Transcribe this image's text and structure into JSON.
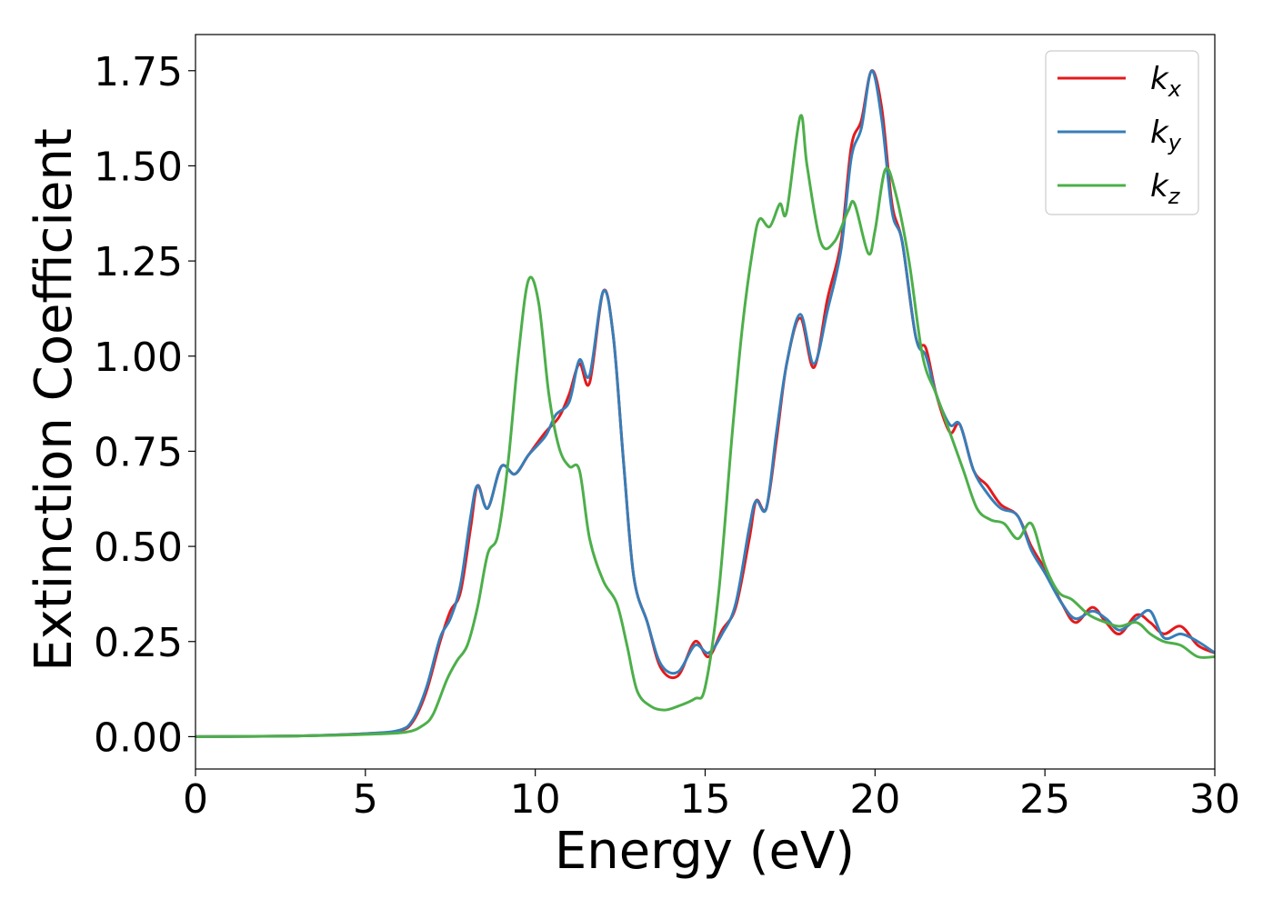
{
  "chart_data": {
    "type": "line",
    "xlabel": "Energy (eV)",
    "ylabel": "Extinction Coefficient",
    "xlim": [
      0,
      30
    ],
    "ylim": [
      -0.085,
      1.845
    ],
    "xticks": [
      0,
      5,
      10,
      15,
      20,
      25,
      30
    ],
    "xtick_labels": [
      "0",
      "5",
      "10",
      "15",
      "20",
      "25",
      "30"
    ],
    "yticks": [
      0.0,
      0.25,
      0.5,
      0.75,
      1.0,
      1.25,
      1.5,
      1.75
    ],
    "ytick_labels": [
      "0.00",
      "0.25",
      "0.50",
      "0.75",
      "1.00",
      "1.25",
      "1.50",
      "1.75"
    ],
    "grid": false,
    "legend_position": "top-right",
    "series": [
      {
        "name": "k_x",
        "label_base": "k",
        "label_sub": "x",
        "color": "#e41a1c",
        "points": [
          [
            0,
            0
          ],
          [
            3,
            0.002
          ],
          [
            5,
            0.008
          ],
          [
            6,
            0.015
          ],
          [
            6.4,
            0.04
          ],
          [
            6.8,
            0.12
          ],
          [
            7.2,
            0.25
          ],
          [
            7.5,
            0.33
          ],
          [
            7.8,
            0.38
          ],
          [
            8.1,
            0.55
          ],
          [
            8.3,
            0.66
          ],
          [
            8.6,
            0.6
          ],
          [
            9.0,
            0.71
          ],
          [
            9.4,
            0.69
          ],
          [
            9.8,
            0.74
          ],
          [
            10.3,
            0.8
          ],
          [
            10.7,
            0.84
          ],
          [
            11.0,
            0.9
          ],
          [
            11.3,
            0.98
          ],
          [
            11.6,
            0.93
          ],
          [
            12.0,
            1.17
          ],
          [
            12.3,
            1.05
          ],
          [
            12.6,
            0.72
          ],
          [
            12.9,
            0.42
          ],
          [
            13.3,
            0.3
          ],
          [
            13.7,
            0.18
          ],
          [
            14.2,
            0.16
          ],
          [
            14.7,
            0.25
          ],
          [
            15.1,
            0.21
          ],
          [
            15.5,
            0.28
          ],
          [
            15.9,
            0.34
          ],
          [
            16.3,
            0.52
          ],
          [
            16.5,
            0.62
          ],
          [
            16.8,
            0.6
          ],
          [
            17.1,
            0.78
          ],
          [
            17.4,
            0.98
          ],
          [
            17.8,
            1.1
          ],
          [
            18.2,
            0.97
          ],
          [
            18.6,
            1.15
          ],
          [
            19.0,
            1.3
          ],
          [
            19.3,
            1.55
          ],
          [
            19.6,
            1.62
          ],
          [
            19.9,
            1.75
          ],
          [
            20.2,
            1.65
          ],
          [
            20.5,
            1.4
          ],
          [
            20.8,
            1.3
          ],
          [
            21.2,
            1.05
          ],
          [
            21.5,
            1.02
          ],
          [
            21.8,
            0.9
          ],
          [
            22.2,
            0.8
          ],
          [
            22.5,
            0.82
          ],
          [
            22.9,
            0.7
          ],
          [
            23.3,
            0.66
          ],
          [
            23.7,
            0.61
          ],
          [
            24.2,
            0.58
          ],
          [
            24.6,
            0.5
          ],
          [
            25.0,
            0.44
          ],
          [
            25.5,
            0.35
          ],
          [
            25.9,
            0.3
          ],
          [
            26.4,
            0.34
          ],
          [
            26.8,
            0.3
          ],
          [
            27.2,
            0.27
          ],
          [
            27.7,
            0.32
          ],
          [
            28.1,
            0.3
          ],
          [
            28.5,
            0.27
          ],
          [
            29.0,
            0.29
          ],
          [
            29.5,
            0.24
          ],
          [
            30,
            0.22
          ]
        ]
      },
      {
        "name": "k_y",
        "label_base": "k",
        "label_sub": "y",
        "color": "#377eb8",
        "points": [
          [
            0,
            0
          ],
          [
            3,
            0.002
          ],
          [
            5,
            0.008
          ],
          [
            6,
            0.017
          ],
          [
            6.4,
            0.045
          ],
          [
            6.8,
            0.13
          ],
          [
            7.2,
            0.26
          ],
          [
            7.5,
            0.31
          ],
          [
            7.8,
            0.4
          ],
          [
            8.1,
            0.58
          ],
          [
            8.3,
            0.66
          ],
          [
            8.6,
            0.6
          ],
          [
            9.0,
            0.71
          ],
          [
            9.4,
            0.69
          ],
          [
            9.8,
            0.74
          ],
          [
            10.3,
            0.79
          ],
          [
            10.6,
            0.845
          ],
          [
            11.0,
            0.88
          ],
          [
            11.3,
            0.99
          ],
          [
            11.6,
            0.95
          ],
          [
            12.0,
            1.17
          ],
          [
            12.3,
            1.05
          ],
          [
            12.6,
            0.72
          ],
          [
            12.9,
            0.42
          ],
          [
            13.3,
            0.3
          ],
          [
            13.7,
            0.19
          ],
          [
            14.2,
            0.17
          ],
          [
            14.7,
            0.24
          ],
          [
            15.1,
            0.22
          ],
          [
            15.5,
            0.27
          ],
          [
            15.9,
            0.35
          ],
          [
            16.3,
            0.55
          ],
          [
            16.5,
            0.62
          ],
          [
            16.8,
            0.6
          ],
          [
            17.1,
            0.8
          ],
          [
            17.4,
            0.98
          ],
          [
            17.8,
            1.11
          ],
          [
            18.2,
            0.98
          ],
          [
            18.6,
            1.12
          ],
          [
            19.0,
            1.28
          ],
          [
            19.3,
            1.52
          ],
          [
            19.6,
            1.6
          ],
          [
            19.9,
            1.75
          ],
          [
            20.2,
            1.62
          ],
          [
            20.5,
            1.38
          ],
          [
            20.8,
            1.3
          ],
          [
            21.2,
            1.05
          ],
          [
            21.5,
            1.0
          ],
          [
            21.8,
            0.9
          ],
          [
            22.2,
            0.82
          ],
          [
            22.5,
            0.82
          ],
          [
            22.9,
            0.7
          ],
          [
            23.3,
            0.64
          ],
          [
            23.7,
            0.6
          ],
          [
            24.2,
            0.58
          ],
          [
            24.6,
            0.49
          ],
          [
            25.0,
            0.43
          ],
          [
            25.5,
            0.35
          ],
          [
            25.9,
            0.31
          ],
          [
            26.4,
            0.33
          ],
          [
            26.8,
            0.31
          ],
          [
            27.2,
            0.28
          ],
          [
            27.7,
            0.31
          ],
          [
            28.1,
            0.33
          ],
          [
            28.5,
            0.26
          ],
          [
            29.0,
            0.27
          ],
          [
            29.5,
            0.25
          ],
          [
            30,
            0.22
          ]
        ]
      },
      {
        "name": "k_z",
        "label_base": "k",
        "label_sub": "z",
        "color": "#4daf4a",
        "points": [
          [
            0,
            0
          ],
          [
            3,
            0.002
          ],
          [
            5,
            0.006
          ],
          [
            6.2,
            0.012
          ],
          [
            6.7,
            0.03
          ],
          [
            7.0,
            0.06
          ],
          [
            7.4,
            0.15
          ],
          [
            7.7,
            0.2
          ],
          [
            8.0,
            0.24
          ],
          [
            8.3,
            0.34
          ],
          [
            8.6,
            0.48
          ],
          [
            8.9,
            0.53
          ],
          [
            9.2,
            0.72
          ],
          [
            9.5,
            1.0
          ],
          [
            9.8,
            1.2
          ],
          [
            10.1,
            1.14
          ],
          [
            10.4,
            0.9
          ],
          [
            10.7,
            0.76
          ],
          [
            11.0,
            0.71
          ],
          [
            11.3,
            0.7
          ],
          [
            11.6,
            0.52
          ],
          [
            12.0,
            0.41
          ],
          [
            12.4,
            0.35
          ],
          [
            12.7,
            0.24
          ],
          [
            13.0,
            0.12
          ],
          [
            13.4,
            0.08
          ],
          [
            13.8,
            0.07
          ],
          [
            14.2,
            0.08
          ],
          [
            14.7,
            0.1
          ],
          [
            15.0,
            0.13
          ],
          [
            15.4,
            0.38
          ],
          [
            15.8,
            0.8
          ],
          [
            16.1,
            1.08
          ],
          [
            16.4,
            1.28
          ],
          [
            16.6,
            1.36
          ],
          [
            16.9,
            1.34
          ],
          [
            17.2,
            1.4
          ],
          [
            17.4,
            1.38
          ],
          [
            17.8,
            1.63
          ],
          [
            18.0,
            1.5
          ],
          [
            18.4,
            1.3
          ],
          [
            18.8,
            1.3
          ],
          [
            19.2,
            1.38
          ],
          [
            19.4,
            1.4
          ],
          [
            19.8,
            1.27
          ],
          [
            20.0,
            1.33
          ],
          [
            20.3,
            1.49
          ],
          [
            20.6,
            1.43
          ],
          [
            21.0,
            1.25
          ],
          [
            21.4,
            1.0
          ],
          [
            21.8,
            0.9
          ],
          [
            22.2,
            0.8
          ],
          [
            22.6,
            0.7
          ],
          [
            23.0,
            0.6
          ],
          [
            23.4,
            0.57
          ],
          [
            23.8,
            0.56
          ],
          [
            24.2,
            0.52
          ],
          [
            24.6,
            0.56
          ],
          [
            25.0,
            0.45
          ],
          [
            25.4,
            0.38
          ],
          [
            25.8,
            0.36
          ],
          [
            26.3,
            0.32
          ],
          [
            26.8,
            0.3
          ],
          [
            27.2,
            0.29
          ],
          [
            27.7,
            0.3
          ],
          [
            28.1,
            0.27
          ],
          [
            28.5,
            0.25
          ],
          [
            29.0,
            0.24
          ],
          [
            29.5,
            0.21
          ],
          [
            30,
            0.21
          ]
        ]
      }
    ]
  }
}
